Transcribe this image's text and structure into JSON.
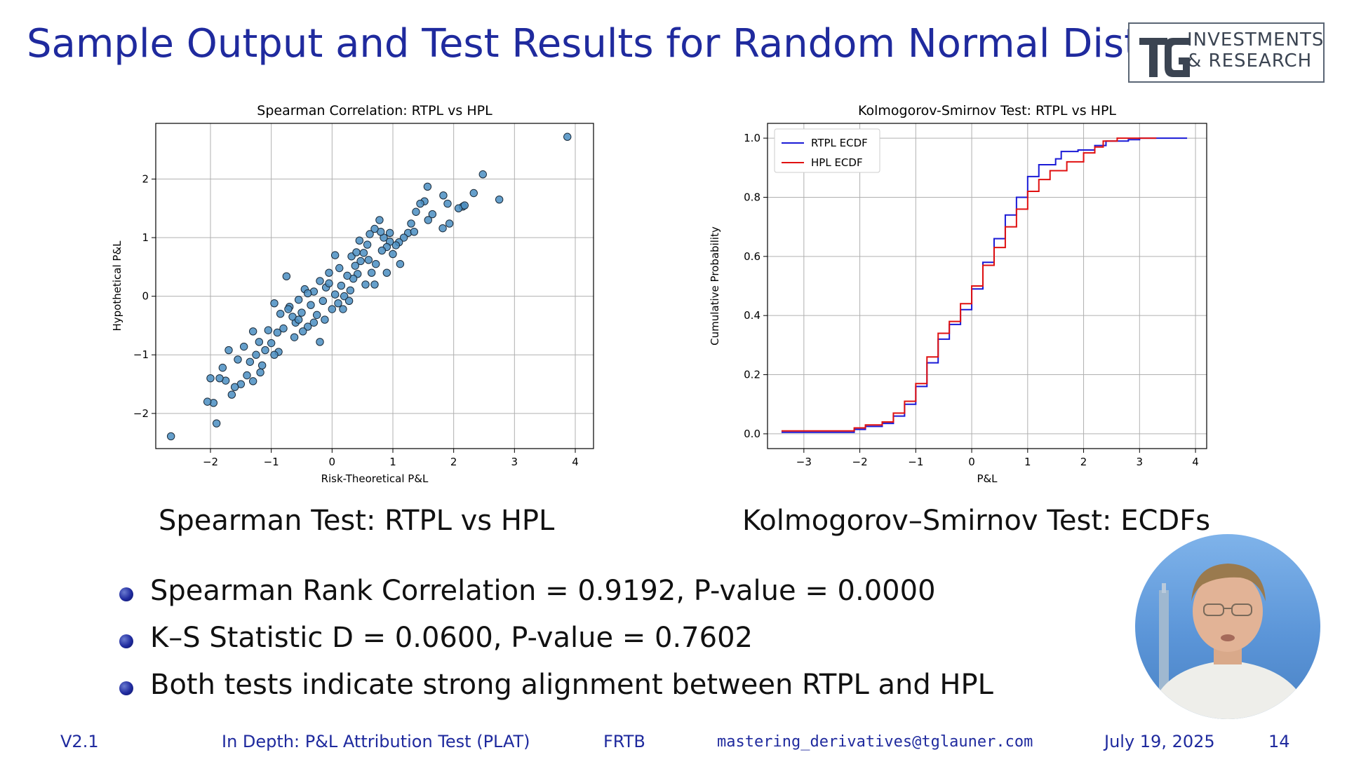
{
  "slide": {
    "title": "Sample Output and Test Results for Random Normal Distributi",
    "logo_text": "INVESTMENTS\n& RESEARCH"
  },
  "captions": {
    "spearman": "Spearman Test: RTPL vs HPL",
    "ks": "Kolmogorov–Smirnov Test: ECDFs"
  },
  "bullets": [
    "Spearman Rank Correlation = 0.9192, P-value = 0.0000",
    "K–S Statistic D = 0.0600, P-value = 0.7602",
    "Both tests indicate strong alignment between RTPL and HPL"
  ],
  "footer": {
    "version": "V2.1",
    "topic": "In Depth: P&L Attribution Test (PLAT)",
    "section": "FRTB",
    "email": "mastering_derivatives@tglauner.com",
    "date": "July 19, 2025",
    "page": "14"
  },
  "colors": {
    "title": "#1f2a9e",
    "scatter_point": "#4a8ec2",
    "rtpl_line": "#1a1ad6",
    "hpl_line": "#e01010"
  },
  "chart_data": [
    {
      "type": "scatter",
      "title": "Spearman Correlation: RTPL vs HPL",
      "xlabel": "Risk-Theoretical P&L",
      "ylabel": "Hypothetical P&L",
      "xlim": [
        -2.9,
        4.3
      ],
      "ylim": [
        -2.6,
        2.95
      ],
      "xticks": [
        -2,
        -1,
        0,
        1,
        2,
        3,
        4
      ],
      "yticks": [
        -2,
        -1,
        0,
        1,
        2
      ],
      "grid": true,
      "points": [
        [
          -2.65,
          -2.39
        ],
        [
          3.87,
          2.72
        ],
        [
          2.75,
          1.65
        ],
        [
          2.48,
          2.08
        ],
        [
          2.33,
          1.76
        ],
        [
          2.15,
          1.53
        ],
        [
          2.08,
          1.5
        ],
        [
          1.93,
          1.24
        ],
        [
          1.82,
          1.16
        ],
        [
          1.9,
          1.58
        ],
        [
          1.83,
          1.72
        ],
        [
          1.57,
          1.87
        ],
        [
          1.52,
          1.62
        ],
        [
          1.45,
          1.58
        ],
        [
          1.38,
          1.44
        ],
        [
          1.3,
          1.24
        ],
        [
          1.25,
          1.08
        ],
        [
          1.18,
          1.0
        ],
        [
          1.1,
          0.92
        ],
        [
          1.05,
          0.87
        ],
        [
          1.0,
          0.72
        ],
        [
          0.95,
          0.93
        ],
        [
          0.9,
          0.84
        ],
        [
          0.82,
          0.78
        ],
        [
          0.85,
          1.0
        ],
        [
          0.8,
          1.1
        ],
        [
          0.78,
          1.3
        ],
        [
          0.7,
          1.15
        ],
        [
          0.62,
          1.06
        ],
        [
          0.58,
          0.88
        ],
        [
          0.52,
          0.74
        ],
        [
          0.47,
          0.6
        ],
        [
          0.42,
          0.38
        ],
        [
          0.38,
          0.52
        ],
        [
          0.35,
          0.3
        ],
        [
          0.3,
          0.1
        ],
        [
          0.25,
          0.35
        ],
        [
          0.2,
          0.0
        ],
        [
          0.15,
          0.18
        ],
        [
          0.1,
          -0.12
        ],
        [
          0.05,
          0.7
        ],
        [
          0.05,
          0.03
        ],
        [
          0.0,
          -0.22
        ],
        [
          -0.05,
          0.4
        ],
        [
          -0.1,
          0.15
        ],
        [
          -0.15,
          -0.08
        ],
        [
          -0.2,
          0.26
        ],
        [
          -0.25,
          -0.32
        ],
        [
          -0.3,
          0.08
        ],
        [
          -0.35,
          -0.15
        ],
        [
          -0.4,
          -0.52
        ],
        [
          -0.45,
          0.12
        ],
        [
          -0.5,
          -0.28
        ],
        [
          -0.55,
          -0.06
        ],
        [
          -0.6,
          -0.45
        ],
        [
          -0.65,
          -0.35
        ],
        [
          -0.7,
          -0.18
        ],
        [
          -0.75,
          0.34
        ],
        [
          -0.8,
          -0.55
        ],
        [
          -0.85,
          -0.3
        ],
        [
          -0.9,
          -0.62
        ],
        [
          -0.95,
          -0.12
        ],
        [
          -1.0,
          -0.8
        ],
        [
          -1.05,
          -0.58
        ],
        [
          -1.1,
          -0.92
        ],
        [
          -1.15,
          -1.18
        ],
        [
          -1.2,
          -0.78
        ],
        [
          -1.25,
          -1.0
        ],
        [
          -1.3,
          -0.6
        ],
        [
          -1.35,
          -1.12
        ],
        [
          -1.4,
          -1.35
        ],
        [
          -1.45,
          -0.86
        ],
        [
          -1.5,
          -1.5
        ],
        [
          -1.55,
          -1.08
        ],
        [
          -1.6,
          -1.55
        ],
        [
          -1.65,
          -1.68
        ],
        [
          -1.7,
          -0.92
        ],
        [
          -1.75,
          -1.44
        ],
        [
          -1.8,
          -1.22
        ],
        [
          -1.85,
          -1.4
        ],
        [
          -1.9,
          -2.17
        ],
        [
          -1.95,
          -1.82
        ],
        [
          -2.05,
          -1.8
        ],
        [
          -2.0,
          -1.4
        ],
        [
          -0.2,
          -0.78
        ],
        [
          -0.48,
          -0.6
        ],
        [
          0.32,
          0.68
        ],
        [
          0.65,
          0.4
        ],
        [
          0.72,
          0.55
        ],
        [
          0.9,
          0.4
        ],
        [
          1.12,
          0.55
        ],
        [
          0.55,
          0.2
        ],
        [
          0.28,
          -0.08
        ],
        [
          -0.05,
          0.22
        ],
        [
          0.45,
          0.95
        ],
        [
          0.6,
          0.62
        ],
        [
          -0.3,
          -0.45
        ],
        [
          -0.62,
          -0.7
        ],
        [
          -0.88,
          -0.95
        ],
        [
          -1.18,
          -1.3
        ],
        [
          -0.72,
          -0.22
        ],
        [
          0.12,
          0.48
        ],
        [
          0.18,
          -0.22
        ],
        [
          -0.4,
          0.05
        ],
        [
          1.65,
          1.4
        ],
        [
          1.58,
          1.3
        ],
        [
          2.18,
          1.55
        ],
        [
          1.35,
          1.1
        ],
        [
          0.95,
          1.08
        ],
        [
          0.4,
          0.75
        ],
        [
          -0.12,
          -0.4
        ],
        [
          -0.95,
          -1.0
        ],
        [
          -1.3,
          -1.45
        ],
        [
          0.7,
          0.2
        ],
        [
          -0.55,
          -0.4
        ]
      ]
    },
    {
      "type": "line",
      "title": "Kolmogorov-Smirnov Test: RTPL vs HPL",
      "xlabel": "P&L",
      "ylabel": "Cumulative Probability",
      "xlim": [
        -3.65,
        4.2
      ],
      "ylim": [
        -0.05,
        1.05
      ],
      "xticks": [
        -3,
        -2,
        -1,
        0,
        1,
        2,
        3,
        4
      ],
      "yticks": [
        0.0,
        0.2,
        0.4,
        0.6,
        0.8,
        1.0
      ],
      "grid": true,
      "legend": "top-left",
      "series": [
        {
          "name": "RTPL ECDF",
          "points": [
            [
              -3.4,
              0.005
            ],
            [
              -2.65,
              0.005
            ],
            [
              -2.1,
              0.015
            ],
            [
              -1.9,
              0.025
            ],
            [
              -1.6,
              0.035
            ],
            [
              -1.4,
              0.06
            ],
            [
              -1.2,
              0.1
            ],
            [
              -1.0,
              0.16
            ],
            [
              -0.8,
              0.24
            ],
            [
              -0.6,
              0.32
            ],
            [
              -0.4,
              0.37
            ],
            [
              -0.2,
              0.42
            ],
            [
              0.0,
              0.49
            ],
            [
              0.2,
              0.58
            ],
            [
              0.4,
              0.66
            ],
            [
              0.6,
              0.74
            ],
            [
              0.8,
              0.8
            ],
            [
              1.0,
              0.87
            ],
            [
              1.2,
              0.91
            ],
            [
              1.5,
              0.93
            ],
            [
              1.6,
              0.955
            ],
            [
              1.9,
              0.96
            ],
            [
              2.2,
              0.975
            ],
            [
              2.4,
              0.99
            ],
            [
              2.8,
              0.995
            ],
            [
              3.0,
              1.0
            ],
            [
              3.85,
              1.0
            ]
          ]
        },
        {
          "name": "HPL ECDF",
          "points": [
            [
              -3.4,
              0.01
            ],
            [
              -2.4,
              0.01
            ],
            [
              -2.1,
              0.02
            ],
            [
              -1.9,
              0.03
            ],
            [
              -1.6,
              0.04
            ],
            [
              -1.4,
              0.07
            ],
            [
              -1.2,
              0.11
            ],
            [
              -1.0,
              0.17
            ],
            [
              -0.8,
              0.26
            ],
            [
              -0.6,
              0.34
            ],
            [
              -0.4,
              0.38
            ],
            [
              -0.2,
              0.44
            ],
            [
              0.0,
              0.5
            ],
            [
              0.2,
              0.57
            ],
            [
              0.4,
              0.63
            ],
            [
              0.6,
              0.7
            ],
            [
              0.8,
              0.76
            ],
            [
              1.0,
              0.82
            ],
            [
              1.2,
              0.86
            ],
            [
              1.4,
              0.89
            ],
            [
              1.7,
              0.92
            ],
            [
              2.0,
              0.95
            ],
            [
              2.2,
              0.97
            ],
            [
              2.35,
              0.99
            ],
            [
              2.6,
              1.0
            ],
            [
              3.3,
              1.0
            ]
          ]
        }
      ]
    }
  ]
}
